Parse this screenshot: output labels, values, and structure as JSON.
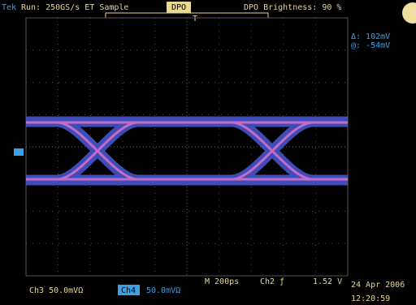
{
  "header": {
    "brand": "Tek",
    "status": "Run: 250GS/s ET Sample",
    "mode": "DPO",
    "brightness": "DPO Brightness: 90 %"
  },
  "markers": {
    "trigger_position": "T"
  },
  "cursor": {
    "delta": "Δ: 102mV",
    "at": "@: -54mV"
  },
  "footer": {
    "ch3": "Ch3 50.0mVΩ",
    "ch4": "Ch4",
    "ch4_scale": "50.0mVΩ",
    "timebase": "M 200ps",
    "trigger": "Ch2 ƒ",
    "trigger_level": "1.52 V",
    "date": "24 Apr 2006",
    "time": "12:20:59"
  }
}
